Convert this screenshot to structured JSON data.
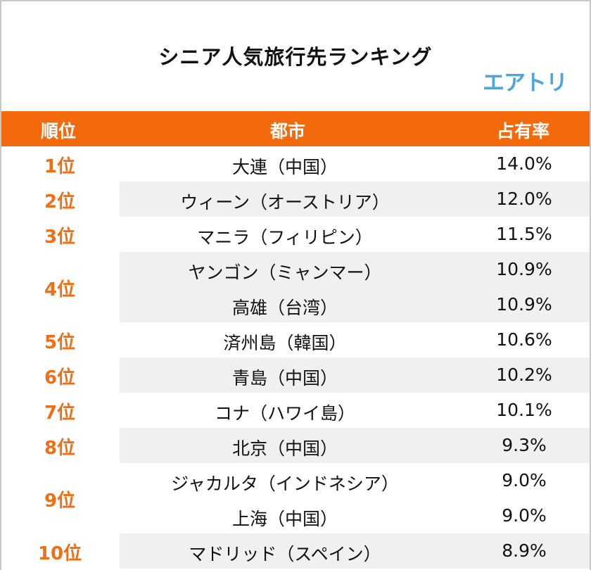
{
  "title": "シニア人気旅行先ランキング",
  "logo": "エアトリ",
  "colors": {
    "header": "#f26a0c",
    "rank": "#ee6f16",
    "logo": "#4fa6dc",
    "stripe": "#f0f0f0"
  },
  "chart_data": {
    "type": "table",
    "title": "シニア人気旅行先ランキング",
    "columns": [
      "順位",
      "都市",
      "占有率"
    ],
    "groups": [
      {
        "rank": "1位",
        "items": [
          {
            "city": "大連（中国）",
            "share": "14.0%"
          }
        ]
      },
      {
        "rank": "2位",
        "items": [
          {
            "city": "ウィーン（オーストリア）",
            "share": "12.0%"
          }
        ]
      },
      {
        "rank": "3位",
        "items": [
          {
            "city": "マニラ（フィリピン）",
            "share": "11.5%"
          }
        ]
      },
      {
        "rank": "4位",
        "items": [
          {
            "city": "ヤンゴン（ミャンマー）",
            "share": "10.9%"
          },
          {
            "city": "高雄（台湾）",
            "share": "10.9%"
          }
        ]
      },
      {
        "rank": "5位",
        "items": [
          {
            "city": "済州島（韓国）",
            "share": "10.6%"
          }
        ]
      },
      {
        "rank": "6位",
        "items": [
          {
            "city": "青島（中国）",
            "share": "10.2%"
          }
        ]
      },
      {
        "rank": "7位",
        "items": [
          {
            "city": "コナ（ハワイ島）",
            "share": "10.1%"
          }
        ]
      },
      {
        "rank": "8位",
        "items": [
          {
            "city": "北京（中国）",
            "share": "9.3%"
          }
        ]
      },
      {
        "rank": "9位",
        "items": [
          {
            "city": "ジャカルタ（インドネシア）",
            "share": "9.0%"
          },
          {
            "city": "上海（中国）",
            "share": "9.0%"
          }
        ]
      },
      {
        "rank": "10位",
        "items": [
          {
            "city": "マドリッド（スペイン）",
            "share": "8.9%"
          }
        ]
      }
    ]
  }
}
